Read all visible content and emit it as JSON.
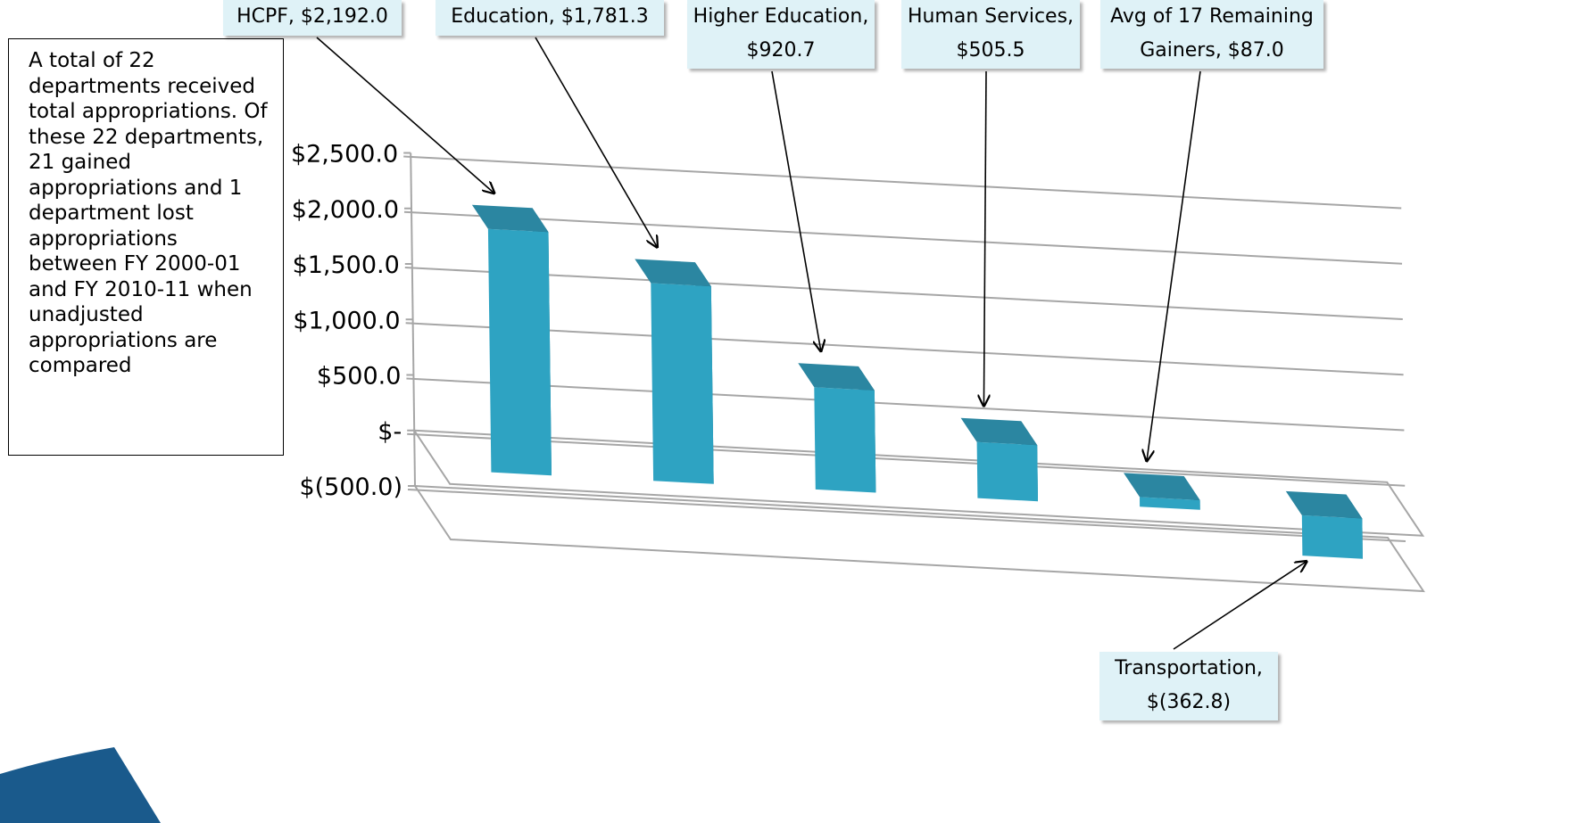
{
  "note": {
    "text": "A total of 22 departments received total appropriations. Of these 22 departments, 21 gained appropriations and 1 department lost appropriations between FY 2000-01 and FY 2010-11 when unadjusted appropriations are compared"
  },
  "colors": {
    "bar_front": "#2ea3c2",
    "bar_top": "#2b86a1",
    "bar_side": "#1e6a80",
    "callout_fill": "#dff2f7",
    "gridline": "#a6a6a6",
    "corner_accent": "#1a5a8c"
  },
  "chart_data": {
    "type": "bar",
    "title": "",
    "xlabel": "",
    "ylabel": "",
    "ylim": [
      -500,
      2500
    ],
    "yticks": [
      {
        "value": 2500,
        "label": "$2,500.0"
      },
      {
        "value": 2000,
        "label": "$2,000.0"
      },
      {
        "value": 1500,
        "label": "$1,500.0"
      },
      {
        "value": 1000,
        "label": "$1,000.0"
      },
      {
        "value": 500,
        "label": "$500.0"
      },
      {
        "value": 0,
        "label": "$-"
      },
      {
        "value": -500,
        "label": "$(500.0)"
      }
    ],
    "categories": [
      "HCPF",
      "Education",
      "Higher Education",
      "Human Services",
      "Avg of 17 Remaining Gainers",
      "Transportation"
    ],
    "values": [
      2192.0,
      1781.3,
      920.7,
      505.5,
      87.0,
      -362.8
    ],
    "data_labels": [
      "HCPF,  $2,192.0",
      "Education,  $1,781.3",
      "Higher Education, $920.7",
      "Human Services, $505.5",
      "Avg of 17 Remaining Gainers,  $87.0",
      "Transportation, $(362.8)"
    ],
    "grid": true,
    "legend": "none"
  }
}
